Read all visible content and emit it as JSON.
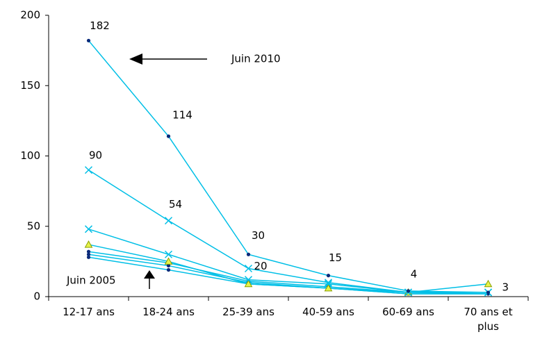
{
  "chart_data": {
    "type": "line",
    "title": "",
    "xlabel": "",
    "ylabel": "",
    "categories": [
      "12-17 ans",
      "18-24 ans",
      "25-39 ans",
      "40-59 ans",
      "60-69 ans",
      "70 ans et plus"
    ],
    "ylim": [
      0,
      200
    ],
    "yticks": [
      0,
      50,
      100,
      150,
      200
    ],
    "grid": false,
    "legend": "none",
    "series": [
      {
        "values": [
          28,
          19,
          9,
          6,
          2,
          2
        ],
        "marker": "dot",
        "color": "#00bfe6"
      },
      {
        "values": [
          30,
          22,
          10,
          6,
          2,
          2
        ],
        "marker": "dot",
        "color": "#00bfe6"
      },
      {
        "values": [
          32,
          24,
          11,
          7,
          3,
          2
        ],
        "marker": "dot",
        "color": "#00bfe6"
      },
      {
        "values": [
          37,
          25,
          9,
          6,
          3,
          9
        ],
        "marker": "triangle",
        "color": "#00bfe6"
      },
      {
        "values": [
          48,
          30,
          12,
          9,
          3,
          3
        ],
        "marker": "x",
        "color": "#00bfe6"
      },
      {
        "values": [
          90,
          54,
          20,
          10,
          3,
          3
        ],
        "marker": "x",
        "color": "#00bfe6"
      },
      {
        "values": [
          182,
          114,
          30,
          15,
          4,
          3
        ],
        "marker": "dot",
        "color": "#00bfe6"
      }
    ],
    "data_labels": [
      {
        "text": "182",
        "category": "12-17 ans",
        "value": 182
      },
      {
        "text": "114",
        "category": "18-24 ans",
        "value": 114
      },
      {
        "text": "90",
        "category": "12-17 ans",
        "value": 90
      },
      {
        "text": "54",
        "category": "18-24 ans",
        "value": 54
      },
      {
        "text": "30",
        "category": "25-39 ans",
        "value": 30
      },
      {
        "text": "20",
        "category": "25-39 ans",
        "value": 20
      },
      {
        "text": "15",
        "category": "40-59 ans",
        "value": 15
      },
      {
        "text": "4",
        "category": "60-69 ans",
        "value": 4
      },
      {
        "text": "3",
        "category": "70 ans et plus",
        "value": 3
      }
    ],
    "annotations": [
      {
        "text": "Juin 2010",
        "arrow": "left",
        "points_to_series": 6
      },
      {
        "text": "Juin 2005",
        "arrow": "up",
        "points_to_series": 0
      }
    ]
  }
}
